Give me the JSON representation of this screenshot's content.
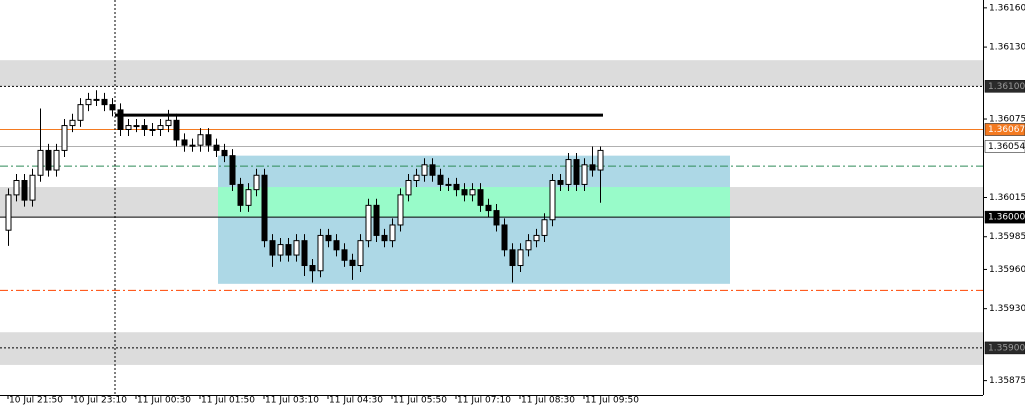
{
  "chart_data": {
    "type": "candlestick",
    "xlim": [
      -1,
      121.875
    ],
    "xticks": [
      {
        "value": 0,
        "label": "10 Jul 21:50"
      },
      {
        "value": 8,
        "label": "10 Jul 23:10"
      },
      {
        "value": 16,
        "label": "11 Jul 00:30"
      },
      {
        "value": 24,
        "label": "11 Jul 01:50"
      },
      {
        "value": 32,
        "label": "11 Jul 03:10"
      },
      {
        "value": 40,
        "label": "11 Jul 04:30"
      },
      {
        "value": 48,
        "label": "11 Jul 05:50"
      },
      {
        "value": 56,
        "label": "11 Jul 07:10"
      },
      {
        "value": 64,
        "label": "11 Jul 08:30"
      },
      {
        "value": 72,
        "label": "11 Jul 09:50"
      }
    ],
    "ylim": [
      1.35864,
      1.36166
    ],
    "yticks": [
      {
        "value": 1.3616,
        "label": "1.36160"
      },
      {
        "value": 1.3613,
        "label": "1.36130"
      },
      {
        "value": 1.36075,
        "label": "1.36075"
      },
      {
        "value": 1.36015,
        "label": "1.36015"
      },
      {
        "value": 1.35985,
        "label": "1.35985"
      },
      {
        "value": 1.3596,
        "label": "1.35960"
      },
      {
        "value": 1.3593,
        "label": "1.35930"
      },
      {
        "value": 1.35875,
        "label": "1.35875"
      }
    ],
    "open": [
      1.3599,
      1.36017,
      1.36028,
      1.36013,
      1.36032,
      1.36051,
      1.36036,
      1.36051,
      1.3607,
      1.36074,
      1.36086,
      1.3609,
      1.3609,
      1.36086,
      1.36082,
      1.36067,
      1.3607,
      1.3607,
      1.36067,
      1.36067,
      1.3607,
      1.36074,
      1.36059,
      1.36055,
      1.36055,
      1.36063,
      1.36055,
      1.36051,
      1.36047,
      1.36025,
      1.36009,
      1.36021,
      1.36032,
      1.35982,
      1.35971,
      1.35979,
      1.35971,
      1.35982,
      1.35963,
      1.35959,
      1.35986,
      1.35982,
      1.35975,
      1.35967,
      1.35963,
      1.35982,
      1.36009,
      1.35986,
      1.35982,
      1.35994,
      1.36017,
      1.36028,
      1.36032,
      1.3604,
      1.36032,
      1.36025,
      1.36025,
      1.36021,
      1.36017,
      1.36021,
      1.36009,
      1.36005,
      1.35994,
      1.35975,
      1.35963,
      1.35975,
      1.35982,
      1.35986,
      1.35998,
      1.36028,
      1.36025,
      1.36044,
      1.36025,
      1.3604,
      1.36036
    ],
    "high": [
      1.36022,
      1.36033,
      1.36033,
      1.36037,
      1.36083,
      1.36056,
      1.36056,
      1.36075,
      1.36079,
      1.36091,
      1.36095,
      1.36097,
      1.36095,
      1.36091,
      1.36087,
      1.36075,
      1.36075,
      1.36075,
      1.36072,
      1.36075,
      1.36082,
      1.36079,
      1.36064,
      1.3606,
      1.36068,
      1.36068,
      1.3606,
      1.36056,
      1.36052,
      1.3603,
      1.36026,
      1.36037,
      1.36037,
      1.35987,
      1.35984,
      1.35984,
      1.35987,
      1.35987,
      1.35968,
      1.35991,
      1.35991,
      1.35987,
      1.3598,
      1.35972,
      1.35987,
      1.36014,
      1.36014,
      1.35991,
      1.35999,
      1.36022,
      1.36033,
      1.36037,
      1.36045,
      1.36045,
      1.36037,
      1.3603,
      1.3603,
      1.36026,
      1.36026,
      1.36026,
      1.36014,
      1.3601,
      1.35999,
      1.3598,
      1.3598,
      1.35987,
      1.35991,
      1.36003,
      1.36033,
      1.36033,
      1.36049,
      1.36049,
      1.36045,
      1.36054,
      1.36054
    ],
    "low": [
      1.35978,
      1.36012,
      1.36008,
      1.36008,
      1.36027,
      1.36031,
      1.36031,
      1.36046,
      1.36065,
      1.36069,
      1.36081,
      1.36085,
      1.36081,
      1.36077,
      1.36062,
      1.36062,
      1.36065,
      1.36062,
      1.36062,
      1.36062,
      1.36065,
      1.36054,
      1.3605,
      1.3605,
      1.3605,
      1.3605,
      1.36046,
      1.36042,
      1.3602,
      1.36004,
      1.36004,
      1.36016,
      1.35977,
      1.35962,
      1.35966,
      1.35966,
      1.35966,
      1.35955,
      1.3595,
      1.35954,
      1.35977,
      1.3597,
      1.35962,
      1.35952,
      1.35958,
      1.35977,
      1.35981,
      1.35977,
      1.35977,
      1.35989,
      1.36012,
      1.36023,
      1.36027,
      1.36027,
      1.3602,
      1.3602,
      1.36016,
      1.36012,
      1.36012,
      1.36004,
      1.36,
      1.35989,
      1.3597,
      1.3595,
      1.35958,
      1.3597,
      1.35977,
      1.35981,
      1.35993,
      1.3602,
      1.3602,
      1.3602,
      1.3602,
      1.36031,
      1.36011
    ],
    "close": [
      1.36017,
      1.36028,
      1.36013,
      1.36032,
      1.36051,
      1.36036,
      1.36051,
      1.3607,
      1.36074,
      1.36086,
      1.3609,
      1.3609,
      1.36086,
      1.36082,
      1.36067,
      1.3607,
      1.3607,
      1.36067,
      1.36067,
      1.3607,
      1.36074,
      1.36059,
      1.36055,
      1.36055,
      1.36063,
      1.36055,
      1.36051,
      1.36047,
      1.36025,
      1.36009,
      1.36021,
      1.36032,
      1.35982,
      1.35971,
      1.35979,
      1.35971,
      1.35982,
      1.35963,
      1.35959,
      1.35986,
      1.35982,
      1.35975,
      1.35967,
      1.35963,
      1.35982,
      1.36009,
      1.35986,
      1.35982,
      1.35994,
      1.36017,
      1.36028,
      1.36032,
      1.3604,
      1.36032,
      1.36025,
      1.36025,
      1.36021,
      1.36017,
      1.36021,
      1.36009,
      1.36005,
      1.35994,
      1.35975,
      1.35963,
      1.35975,
      1.35982,
      1.35986,
      1.35998,
      1.36028,
      1.36025,
      1.36044,
      1.36025,
      1.3604,
      1.36036,
      1.36051
    ],
    "up_color": "#ffffff",
    "down_color": "#000000",
    "wick_color": "#000000",
    "zones": [
      {
        "y": [
          1.361,
          1.3612
        ],
        "color": "#dcdcdc"
      },
      {
        "y": [
          1.36,
          1.36023
        ],
        "color": "#dcdcdc"
      },
      {
        "y": [
          1.35887,
          1.35912
        ],
        "color": "#dcdcdc"
      }
    ],
    "boxes": [
      {
        "x": [
          26.25,
          90.25
        ],
        "y": [
          1.35949,
          1.36047
        ],
        "color": "#add8e6"
      },
      {
        "x": [
          26.25,
          90.25
        ],
        "y": [
          1.36,
          1.36023
        ],
        "color": "#98fbc9"
      }
    ],
    "levels": [
      {
        "value": 1.361,
        "label": "1.36100",
        "color": "#000000",
        "style": "dotted",
        "label_bg": "#2a2a2a",
        "label_color": "#9a9a9a"
      },
      {
        "value": 1.36067,
        "label": "1.36067",
        "color": "#f47a20",
        "style": "solid",
        "label_bg": "#f47a20",
        "label_color": "#ffffff"
      },
      {
        "value": 1.36054,
        "label": "1.36054",
        "color": "#b0b0b0",
        "style": "solid",
        "label_bg": "#ffffff",
        "label_color": "#000000"
      },
      {
        "value": 1.36039,
        "color": "#2e8b57",
        "style": "dashdot"
      },
      {
        "value": 1.36,
        "label": "1.36000",
        "color": "#000000",
        "style": "solid",
        "label_bg": "#000000",
        "label_color": "#ffffff"
      },
      {
        "value": 1.35944,
        "color": "#ff4500",
        "style": "dashdot"
      },
      {
        "value": 1.359,
        "label": "1.35900",
        "color": "#000000",
        "style": "dotted",
        "label_bg": "#2a2a2a",
        "label_color": "#9a9a9a"
      }
    ],
    "segments": [
      {
        "x": [
          13.375,
          74.375
        ],
        "y": 1.36078,
        "color": "#000000",
        "width": 3
      }
    ],
    "vlines": [
      {
        "x": 13.375,
        "color": "#000000",
        "style": "dotted"
      }
    ]
  }
}
